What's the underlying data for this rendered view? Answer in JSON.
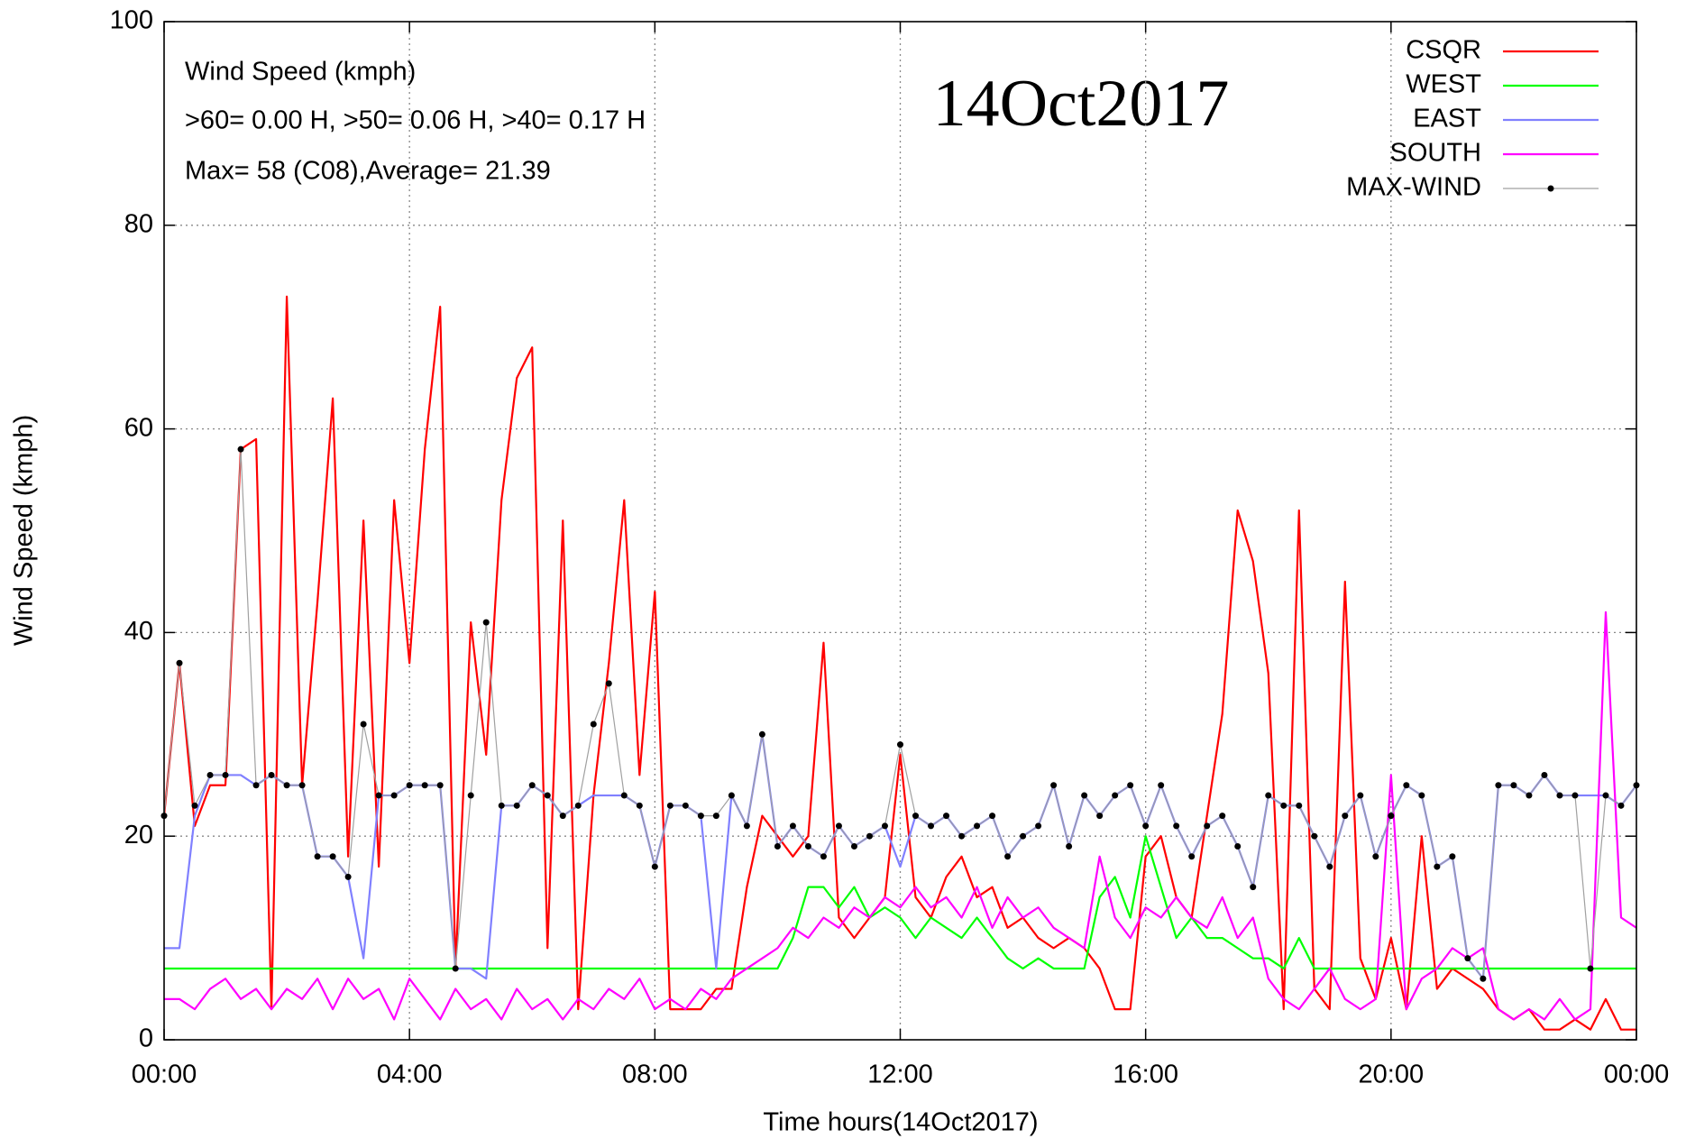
{
  "chart_data": {
    "type": "line",
    "annotations": [
      "Wind Speed (kmph)",
      ">60=  0.00 H, >50=  0.06 H, >40=  0.17 H",
      "Max= 58 (C08),Average= 21.39"
    ],
    "date_label": "14Oct2017",
    "xlabel": "Time hours(14Oct2017)",
    "ylabel": "Wind Speed (kmph)",
    "xlim": [
      0,
      24
    ],
    "xticks": [
      {
        "value": 0,
        "label": "00:00"
      },
      {
        "value": 4,
        "label": "04:00"
      },
      {
        "value": 8,
        "label": "08:00"
      },
      {
        "value": 12,
        "label": "12:00"
      },
      {
        "value": 16,
        "label": "16:00"
      },
      {
        "value": 20,
        "label": "20:00"
      },
      {
        "value": 24,
        "label": "00:00"
      }
    ],
    "ylim": [
      0,
      100
    ],
    "yticks": [
      0,
      20,
      40,
      60,
      80,
      100
    ],
    "grid": true,
    "legend": "top-right",
    "x": [
      0,
      0.25,
      0.5,
      0.75,
      1,
      1.25,
      1.5,
      1.75,
      2,
      2.25,
      2.5,
      2.75,
      3,
      3.25,
      3.5,
      3.75,
      4,
      4.25,
      4.5,
      4.75,
      5,
      5.25,
      5.5,
      5.75,
      6,
      6.25,
      6.5,
      6.75,
      7,
      7.25,
      7.5,
      7.75,
      8,
      8.25,
      8.5,
      8.75,
      9,
      9.25,
      9.5,
      9.75,
      10,
      10.25,
      10.5,
      10.75,
      11,
      11.25,
      11.5,
      11.75,
      12,
      12.25,
      12.5,
      12.75,
      13,
      13.25,
      13.5,
      13.75,
      14,
      14.25,
      14.5,
      14.75,
      15,
      15.25,
      15.5,
      15.75,
      16,
      16.25,
      16.5,
      16.75,
      17,
      17.25,
      17.5,
      17.75,
      18,
      18.25,
      18.5,
      18.75,
      19,
      19.25,
      19.5,
      19.75,
      20,
      20.25,
      20.5,
      20.75,
      21,
      21.25,
      21.5,
      21.75,
      22,
      22.25,
      22.5,
      22.75,
      23,
      23.25,
      23.5,
      23.75,
      24
    ],
    "series": [
      {
        "name": "CSQR",
        "color": "#ff0000",
        "values": [
          22,
          37,
          21,
          25,
          25,
          58,
          59,
          3,
          73,
          25,
          43,
          63,
          18,
          51,
          17,
          53,
          37,
          58,
          72,
          7,
          41,
          28,
          53,
          65,
          68,
          9,
          51,
          3,
          24,
          37,
          53,
          26,
          44,
          3,
          3,
          3,
          5,
          5,
          15,
          22,
          20,
          18,
          20,
          39,
          12,
          10,
          12,
          14,
          28,
          14,
          12,
          16,
          18,
          14,
          15,
          11,
          12,
          10,
          9,
          10,
          9,
          7,
          3,
          3,
          18,
          20,
          14,
          12,
          22,
          32,
          52,
          47,
          36,
          3,
          52,
          5,
          3,
          45,
          8,
          4,
          10,
          3,
          20,
          5,
          7,
          6,
          5,
          3,
          2,
          3,
          1,
          1,
          2,
          1,
          4,
          1,
          1
        ]
      },
      {
        "name": "WEST",
        "color": "#00ff00",
        "values": [
          7,
          7,
          7,
          7,
          7,
          7,
          7,
          7,
          7,
          7,
          7,
          7,
          7,
          7,
          7,
          7,
          7,
          7,
          7,
          7,
          7,
          7,
          7,
          7,
          7,
          7,
          7,
          7,
          7,
          7,
          7,
          7,
          7,
          7,
          7,
          7,
          7,
          7,
          7,
          7,
          7,
          10,
          15,
          15,
          13,
          15,
          12,
          13,
          12,
          10,
          12,
          11,
          10,
          12,
          10,
          8,
          7,
          8,
          7,
          7,
          7,
          14,
          16,
          12,
          20,
          15,
          10,
          12,
          10,
          10,
          9,
          8,
          8,
          7,
          10,
          7,
          7,
          7,
          7,
          7,
          7,
          7,
          7,
          7,
          7,
          7,
          7,
          7,
          7,
          7,
          7,
          7,
          7,
          7,
          7,
          7,
          7
        ]
      },
      {
        "name": "EAST",
        "color": "#8080ff",
        "values": [
          9,
          9,
          22,
          26,
          26,
          26,
          25,
          26,
          25,
          25,
          18,
          18,
          16,
          8,
          24,
          24,
          25,
          25,
          25,
          7,
          7,
          6,
          23,
          23,
          25,
          24,
          22,
          23,
          24,
          24,
          24,
          23,
          17,
          23,
          23,
          22,
          7,
          24,
          21,
          30,
          19,
          21,
          19,
          18,
          21,
          19,
          20,
          21,
          17,
          22,
          21,
          22,
          20,
          21,
          22,
          18,
          20,
          21,
          25,
          19,
          24,
          22,
          24,
          25,
          21,
          25,
          21,
          18,
          21,
          22,
          19,
          15,
          24,
          23,
          23,
          20,
          17,
          22,
          24,
          18,
          22,
          25,
          24,
          17,
          18,
          8,
          6,
          25,
          25,
          24,
          26,
          24,
          24,
          24,
          24,
          23,
          25
        ]
      },
      {
        "name": "SOUTH",
        "color": "#ff00ff",
        "values": [
          4,
          4,
          3,
          5,
          6,
          4,
          5,
          3,
          5,
          4,
          6,
          3,
          6,
          4,
          5,
          2,
          6,
          4,
          2,
          5,
          3,
          4,
          2,
          5,
          3,
          4,
          2,
          4,
          3,
          5,
          4,
          6,
          3,
          4,
          3,
          5,
          4,
          6,
          7,
          8,
          9,
          11,
          10,
          12,
          11,
          13,
          12,
          14,
          13,
          15,
          13,
          14,
          12,
          15,
          11,
          14,
          12,
          13,
          11,
          10,
          9,
          18,
          12,
          10,
          13,
          12,
          14,
          12,
          11,
          14,
          10,
          12,
          6,
          4,
          3,
          5,
          7,
          4,
          3,
          4,
          26,
          3,
          6,
          7,
          9,
          8,
          9,
          3,
          2,
          3,
          2,
          4,
          2,
          3,
          42,
          12,
          11
        ]
      },
      {
        "name": "MAX-WIND",
        "color": "#a0a0a0",
        "marker_color": "#000000",
        "values": [
          22,
          37,
          23,
          26,
          26,
          58,
          25,
          26,
          25,
          25,
          18,
          18,
          16,
          31,
          24,
          24,
          25,
          25,
          25,
          7,
          24,
          41,
          23,
          23,
          25,
          24,
          22,
          23,
          31,
          35,
          24,
          23,
          17,
          23,
          23,
          22,
          22,
          24,
          21,
          30,
          19,
          21,
          19,
          18,
          21,
          19,
          20,
          21,
          29,
          22,
          21,
          22,
          20,
          21,
          22,
          18,
          20,
          21,
          25,
          19,
          24,
          22,
          24,
          25,
          21,
          25,
          21,
          18,
          21,
          22,
          19,
          15,
          24,
          23,
          23,
          20,
          17,
          22,
          24,
          18,
          22,
          25,
          24,
          17,
          18,
          8,
          6,
          25,
          25,
          24,
          26,
          24,
          24,
          7,
          24,
          23,
          25
        ]
      }
    ]
  }
}
